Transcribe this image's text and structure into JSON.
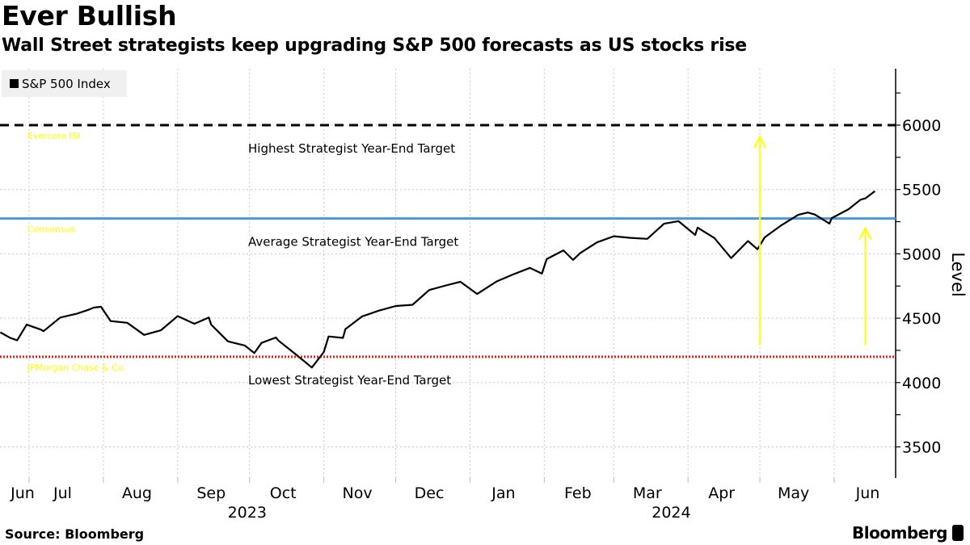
{
  "header": {
    "title": "Ever Bullish",
    "subtitle": "Wall Street strategists keep upgrading S&P 500 forecasts as US stocks rise"
  },
  "footer": {
    "source": "Source: Bloomberg",
    "brand": "Bloomberg"
  },
  "chart_data": {
    "type": "line",
    "title": "Ever Bullish",
    "subtitle": "Wall Street strategists keep upgrading S&P 500 forecasts as US stocks rise",
    "ylabel": "Level",
    "xlabel": "",
    "ylim": [
      3250,
      6450
    ],
    "yticks": [
      3500,
      4000,
      4500,
      5000,
      5500,
      6000
    ],
    "xlim": [
      "2023-06-19",
      "2024-06-28"
    ],
    "x_tick_labels": [
      {
        "label": "Jun",
        "date": "2023-06-24"
      },
      {
        "label": "Jul",
        "date": "2023-07-15"
      },
      {
        "label": "Aug",
        "date": "2023-08-15"
      },
      {
        "label": "Sep",
        "date": "2023-09-15"
      },
      {
        "label": "Oct",
        "date": "2023-10-15"
      },
      {
        "label": "Nov",
        "date": "2023-11-15"
      },
      {
        "label": "Dec",
        "date": "2023-12-15"
      },
      {
        "label": "Jan",
        "date": "2024-01-15"
      },
      {
        "label": "Feb",
        "date": "2024-02-15"
      },
      {
        "label": "Mar",
        "date": "2024-03-15"
      },
      {
        "label": "Apr",
        "date": "2024-04-15"
      },
      {
        "label": "May",
        "date": "2024-05-15"
      },
      {
        "label": "Jun",
        "date": "2024-06-15"
      }
    ],
    "year_labels": [
      {
        "label": "2023",
        "date": "2023-09-30"
      },
      {
        "label": "2024",
        "date": "2024-03-25"
      }
    ],
    "grid": true,
    "legend": {
      "position": "top-left",
      "entries": [
        "S&P 500 Index"
      ]
    },
    "series": [
      {
        "name": "S&P 500 Index",
        "color": "#000000",
        "points": [
          [
            "2023-06-19",
            4390
          ],
          [
            "2023-06-23",
            4348
          ],
          [
            "2023-06-26",
            4328
          ],
          [
            "2023-06-30",
            4450
          ],
          [
            "2023-07-06",
            4411
          ],
          [
            "2023-07-07",
            4399
          ],
          [
            "2023-07-14",
            4505
          ],
          [
            "2023-07-21",
            4536
          ],
          [
            "2023-07-26",
            4567
          ],
          [
            "2023-07-28",
            4582
          ],
          [
            "2023-07-31",
            4589
          ],
          [
            "2023-08-04",
            4478
          ],
          [
            "2023-08-11",
            4464
          ],
          [
            "2023-08-18",
            4370
          ],
          [
            "2023-08-25",
            4406
          ],
          [
            "2023-09-01",
            4516
          ],
          [
            "2023-09-08",
            4457
          ],
          [
            "2023-09-14",
            4505
          ],
          [
            "2023-09-15",
            4450
          ],
          [
            "2023-09-22",
            4320
          ],
          [
            "2023-09-29",
            4288
          ],
          [
            "2023-10-03",
            4229
          ],
          [
            "2023-10-06",
            4308
          ],
          [
            "2023-10-12",
            4350
          ],
          [
            "2023-10-13",
            4327
          ],
          [
            "2023-10-20",
            4224
          ],
          [
            "2023-10-27",
            4117
          ],
          [
            "2023-11-01",
            4237
          ],
          [
            "2023-11-03",
            4358
          ],
          [
            "2023-11-09",
            4347
          ],
          [
            "2023-11-10",
            4415
          ],
          [
            "2023-11-17",
            4514
          ],
          [
            "2023-11-24",
            4559
          ],
          [
            "2023-12-01",
            4595
          ],
          [
            "2023-12-08",
            4604
          ],
          [
            "2023-12-15",
            4719
          ],
          [
            "2023-12-22",
            4755
          ],
          [
            "2023-12-28",
            4783
          ],
          [
            "2024-01-04",
            4688
          ],
          [
            "2024-01-12",
            4784
          ],
          [
            "2024-01-19",
            4840
          ],
          [
            "2024-01-26",
            4891
          ],
          [
            "2024-01-31",
            4846
          ],
          [
            "2024-02-02",
            4959
          ],
          [
            "2024-02-09",
            5027
          ],
          [
            "2024-02-13",
            4953
          ],
          [
            "2024-02-16",
            5006
          ],
          [
            "2024-02-23",
            5089
          ],
          [
            "2024-03-01",
            5137
          ],
          [
            "2024-03-08",
            5124
          ],
          [
            "2024-03-15",
            5117
          ],
          [
            "2024-03-22",
            5234
          ],
          [
            "2024-03-28",
            5254
          ],
          [
            "2024-04-04",
            5147
          ],
          [
            "2024-04-05",
            5204
          ],
          [
            "2024-04-12",
            5123
          ],
          [
            "2024-04-19",
            4967
          ],
          [
            "2024-04-26",
            5100
          ],
          [
            "2024-04-30",
            5036
          ],
          [
            "2024-05-03",
            5128
          ],
          [
            "2024-05-10",
            5223
          ],
          [
            "2024-05-17",
            5303
          ],
          [
            "2024-05-21",
            5321
          ],
          [
            "2024-05-24",
            5305
          ],
          [
            "2024-05-30",
            5235
          ],
          [
            "2024-05-31",
            5278
          ],
          [
            "2024-06-07",
            5347
          ],
          [
            "2024-06-12",
            5421
          ],
          [
            "2024-06-14",
            5431
          ],
          [
            "2024-06-18",
            5487
          ]
        ]
      }
    ],
    "reference_lines": [
      {
        "name": "Highest Strategist Year-End Target",
        "value": 6000,
        "style": "dashed",
        "color": "#000000",
        "source_label": "Evercore ISI"
      },
      {
        "name": "Average Strategist Year-End Target",
        "value": 5275,
        "style": "solid",
        "color": "#4a98dc",
        "source_label": "Consensus"
      },
      {
        "name": "Lowest Strategist Year-End Target",
        "value": 4200,
        "style": "dotted",
        "color": "#e02020",
        "source_label": "JPMorgan Chase & Co."
      }
    ],
    "annotations": {
      "arrow_color": "#ffff00",
      "label_color": "#ffff00",
      "arrows": [
        {
          "date": "2024-05-01",
          "from": 4290,
          "to": 5910
        },
        {
          "date": "2024-06-14",
          "from": 4290,
          "to": 5200
        }
      ]
    }
  }
}
